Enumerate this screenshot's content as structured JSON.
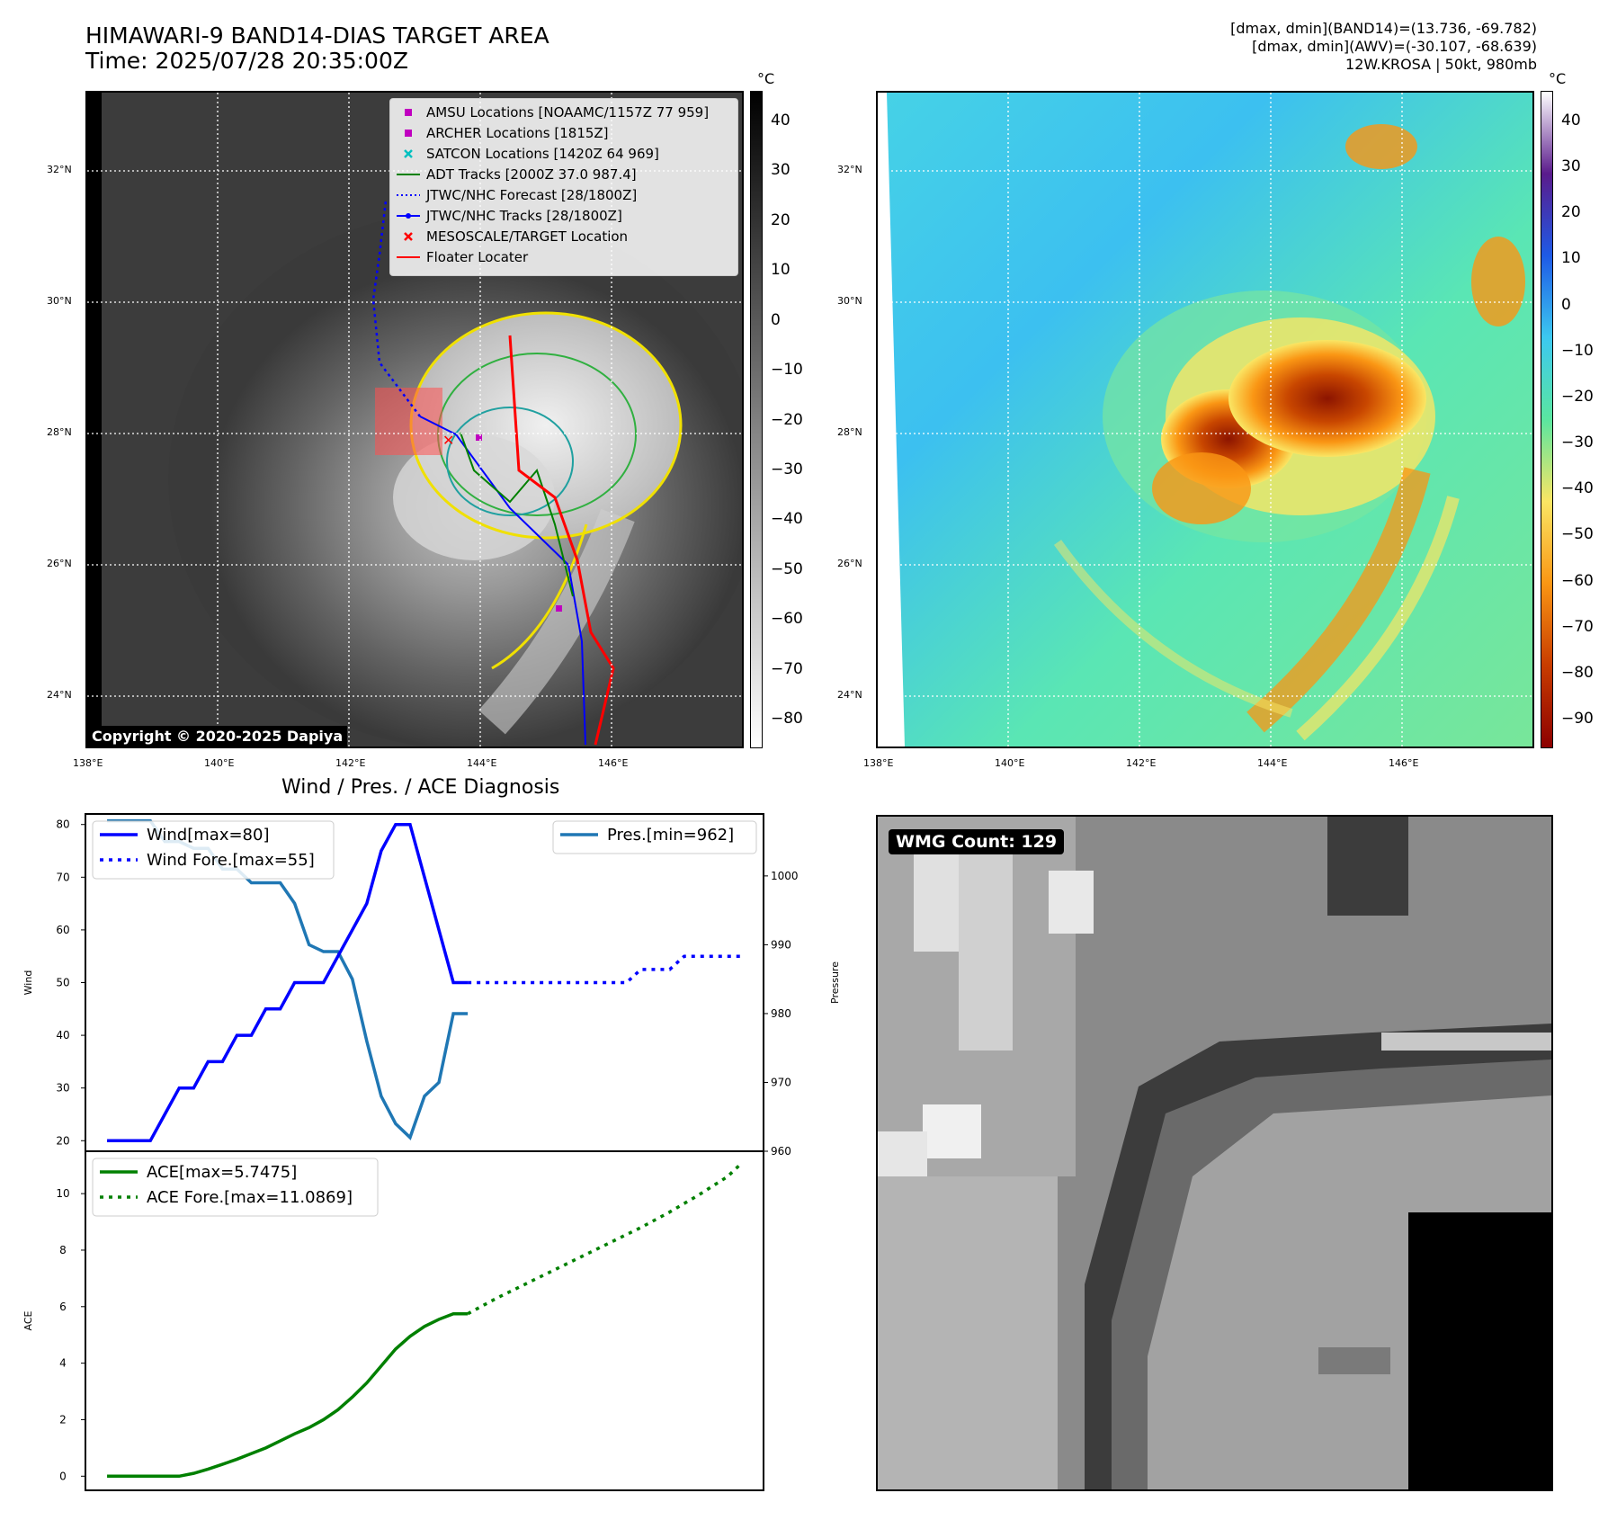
{
  "header": {
    "title_line1": "HIMAWARI-9 BAND14-DIAS TARGET AREA",
    "title_line2": "Time: 2025/07/28 20:35:00Z",
    "stats_line1": "[dmax, dmin](BAND14)=(13.736, -69.782)",
    "stats_line2": "[dmax, dmin](AWV)=(-30.107, -68.639)",
    "stats_line3": "12W.KROSA | 50kt, 980mb"
  },
  "maps": {
    "lat_labels": [
      "32°N",
      "30°N",
      "28°N",
      "26°N",
      "24°N"
    ],
    "lon_labels": [
      "138°E",
      "140°E",
      "142°E",
      "144°E",
      "146°E"
    ],
    "copyright": "Copyright © 2020-2025 Dapiya",
    "left_colorbar": {
      "unit": "°C",
      "ticks": [
        "40",
        "30",
        "20",
        "10",
        "0",
        "−10",
        "−20",
        "−30",
        "−40",
        "−50",
        "−60",
        "−70",
        "−80"
      ],
      "colors": [
        "#000000",
        "#ffffff"
      ]
    },
    "right_colorbar": {
      "unit": "°C",
      "ticks": [
        "40",
        "30",
        "20",
        "10",
        "0",
        "−10",
        "−20",
        "−30",
        "−40",
        "−50",
        "−60",
        "−70",
        "−80",
        "−90"
      ],
      "colors": [
        "#ffffff",
        "#5a1b8c",
        "#1e5ae6",
        "#3cc8f0",
        "#5ae6a0",
        "#fae664",
        "#fa9614",
        "#c83c00",
        "#8c0000"
      ]
    },
    "legend": [
      {
        "label": "AMSU Locations [NOAAMC/1157Z 77 959]",
        "symbol": "square",
        "color": "#c000c0"
      },
      {
        "label": "ARCHER Locations [1815Z]",
        "symbol": "square",
        "color": "#c000c0"
      },
      {
        "label": "SATCON Locations [1420Z 64 969]",
        "symbol": "x",
        "color": "#00c0c0"
      },
      {
        "label": "ADT Tracks [2000Z 37.0 987.4]",
        "symbol": "line",
        "color": "#008000"
      },
      {
        "label": "JTWC/NHC Forecast [28/1800Z]",
        "symbol": "dotted",
        "color": "#0000ff"
      },
      {
        "label": "JTWC/NHC Tracks [28/1800Z]",
        "symbol": "line-dot",
        "color": "#0000ff"
      },
      {
        "label": "MESOSCALE/TARGET Location",
        "symbol": "x",
        "color": "#ff0000"
      },
      {
        "label": "Floater Locater",
        "symbol": "line",
        "color": "#ff0000"
      }
    ]
  },
  "diagnosis": {
    "title": "Wind / Pres. / ACE Diagnosis",
    "wind_label": "Wind",
    "pressure_label": "Pressure",
    "ace_label": "ACE",
    "wind_legend": [
      "Wind[max=80]",
      "Wind Fore.[max=55]"
    ],
    "pres_legend": [
      "Pres.[min=962]"
    ],
    "ace_legend": [
      "ACE[max=5.7475]",
      "ACE Fore.[max=11.0869]"
    ]
  },
  "wmg": {
    "label": "WMG Count: 129"
  },
  "chart_data": [
    {
      "type": "line",
      "title": "Wind / Pres. / ACE Diagnosis",
      "ylabel": "Wind",
      "ylim": [
        18,
        82
      ],
      "y_ticks": [
        20,
        30,
        40,
        50,
        60,
        70,
        80
      ],
      "series": [
        {
          "name": "Wind[max=80]",
          "color": "#0000ff",
          "style": "solid",
          "x": [
            0,
            1,
            2,
            3,
            4,
            5,
            6,
            7,
            8,
            9,
            10,
            11,
            12,
            13,
            14,
            15,
            16,
            17,
            18,
            19,
            20,
            21,
            22,
            23,
            24,
            25
          ],
          "values": [
            20,
            20,
            20,
            20,
            25,
            30,
            30,
            35,
            35,
            40,
            40,
            45,
            45,
            50,
            50,
            50,
            55,
            60,
            65,
            75,
            80,
            80,
            70,
            60,
            50,
            50
          ]
        },
        {
          "name": "Wind Fore.[max=55]",
          "color": "#0000ff",
          "style": "dotted",
          "x": [
            25,
            26,
            27,
            28,
            29,
            30,
            31,
            32,
            33,
            34,
            35,
            36,
            37,
            38,
            39,
            40,
            41,
            42,
            43,
            44
          ],
          "values": [
            50,
            50,
            50,
            50,
            50,
            50,
            50,
            50,
            50,
            50,
            50,
            50,
            52.5,
            52.5,
            52.5,
            55,
            55,
            55,
            55,
            55
          ]
        }
      ]
    },
    {
      "type": "line",
      "ylabel": "Pressure",
      "ylim": [
        960,
        1009
      ],
      "y_ticks": [
        960,
        970,
        980,
        990,
        1000
      ],
      "series": [
        {
          "name": "Pres.[min=962]",
          "color": "#1f77b4",
          "style": "solid",
          "x": [
            0,
            1,
            2,
            3,
            4,
            5,
            6,
            7,
            8,
            9,
            10,
            11,
            12,
            13,
            14,
            15,
            16,
            17,
            18,
            19,
            20,
            21,
            22,
            23,
            24,
            25
          ],
          "values": [
            1008,
            1008,
            1008,
            1008,
            1005,
            1005,
            1004,
            1004,
            1001,
            1001,
            999,
            999,
            999,
            996,
            990,
            989,
            989,
            985,
            976,
            968,
            964,
            962,
            968,
            970,
            980,
            980
          ]
        }
      ]
    },
    {
      "type": "line",
      "ylabel": "ACE",
      "ylim": [
        -0.5,
        11.5
      ],
      "y_ticks": [
        0,
        2,
        4,
        6,
        8,
        10
      ],
      "series": [
        {
          "name": "ACE[max=5.7475]",
          "color": "#008000",
          "style": "solid",
          "x": [
            0,
            1,
            2,
            3,
            4,
            5,
            6,
            7,
            8,
            9,
            10,
            11,
            12,
            13,
            14,
            15,
            16,
            17,
            18,
            19,
            20,
            21,
            22,
            23,
            24,
            25
          ],
          "values": [
            0,
            0,
            0,
            0,
            0,
            0,
            0.1,
            0.25,
            0.42,
            0.6,
            0.8,
            1.0,
            1.25,
            1.5,
            1.72,
            2.0,
            2.35,
            2.8,
            3.3,
            3.9,
            4.5,
            4.95,
            5.3,
            5.55,
            5.7475,
            5.7475
          ]
        },
        {
          "name": "ACE Fore.[max=11.0869]",
          "color": "#008000",
          "style": "dotted",
          "x": [
            25,
            27,
            29,
            31,
            33,
            35,
            37,
            39,
            41,
            43,
            44
          ],
          "values": [
            5.7475,
            6.3,
            6.8,
            7.3,
            7.8,
            8.3,
            8.8,
            9.35,
            9.95,
            10.6,
            11.0869
          ]
        }
      ]
    }
  ]
}
